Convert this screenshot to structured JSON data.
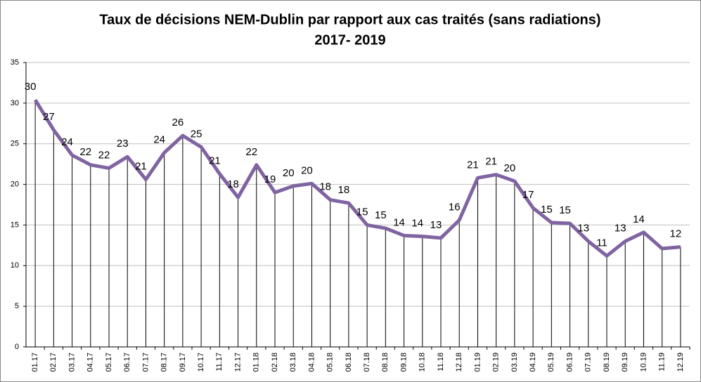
{
  "chart_data": {
    "type": "line",
    "title": "Taux de décisions NEM-Dublin par rapport aux cas traités (sans radiations)",
    "subtitle": "2017- 2019",
    "categories": [
      "01.17",
      "02.17",
      "03.17",
      "04.17",
      "05.17",
      "06.17",
      "07.17",
      "08.17",
      "09.17",
      "10.17",
      "11.17",
      "12.17",
      "01.18",
      "02.18",
      "03.18",
      "04.18",
      "05.18",
      "06.18",
      "07.18",
      "08.18",
      "09.18",
      "10.18",
      "11.18",
      "12.18",
      "01.19",
      "02.19",
      "03.19",
      "04.19",
      "05.19",
      "06.19",
      "07.19",
      "08.19",
      "09.19",
      "10.19",
      "11.19",
      "12.19"
    ],
    "series": [
      {
        "color": "#8064a2",
        "values": [
          30.4,
          26.7,
          23.6,
          22.4,
          22.0,
          23.4,
          20.6,
          23.9,
          26.0,
          24.6,
          21.3,
          18.4,
          22.4,
          19.0,
          19.8,
          20.1,
          18.1,
          17.7,
          15.0,
          14.6,
          13.7,
          13.6,
          13.4,
          15.6,
          20.8,
          21.2,
          20.4,
          17.1,
          15.3,
          15.2,
          13.0,
          11.2,
          13.0,
          14.1,
          12.1,
          12.3
        ],
        "value_labels": [
          "30",
          "27",
          "24",
          "22",
          "22",
          "23",
          "21",
          "24",
          "26",
          "25",
          "21",
          "18",
          "22",
          "19",
          "20",
          "20",
          "18",
          "18",
          "15",
          "15",
          "14",
          "14",
          "13",
          "16",
          "21",
          "21",
          "20",
          "17",
          "15",
          "15",
          "13",
          "11",
          "13",
          "14",
          null,
          "12"
        ]
      }
    ],
    "ylim": [
      0,
      35
    ],
    "yticks": [
      0,
      5,
      10,
      15,
      20,
      25,
      30,
      35
    ],
    "grid": true,
    "drop_lines": true
  }
}
